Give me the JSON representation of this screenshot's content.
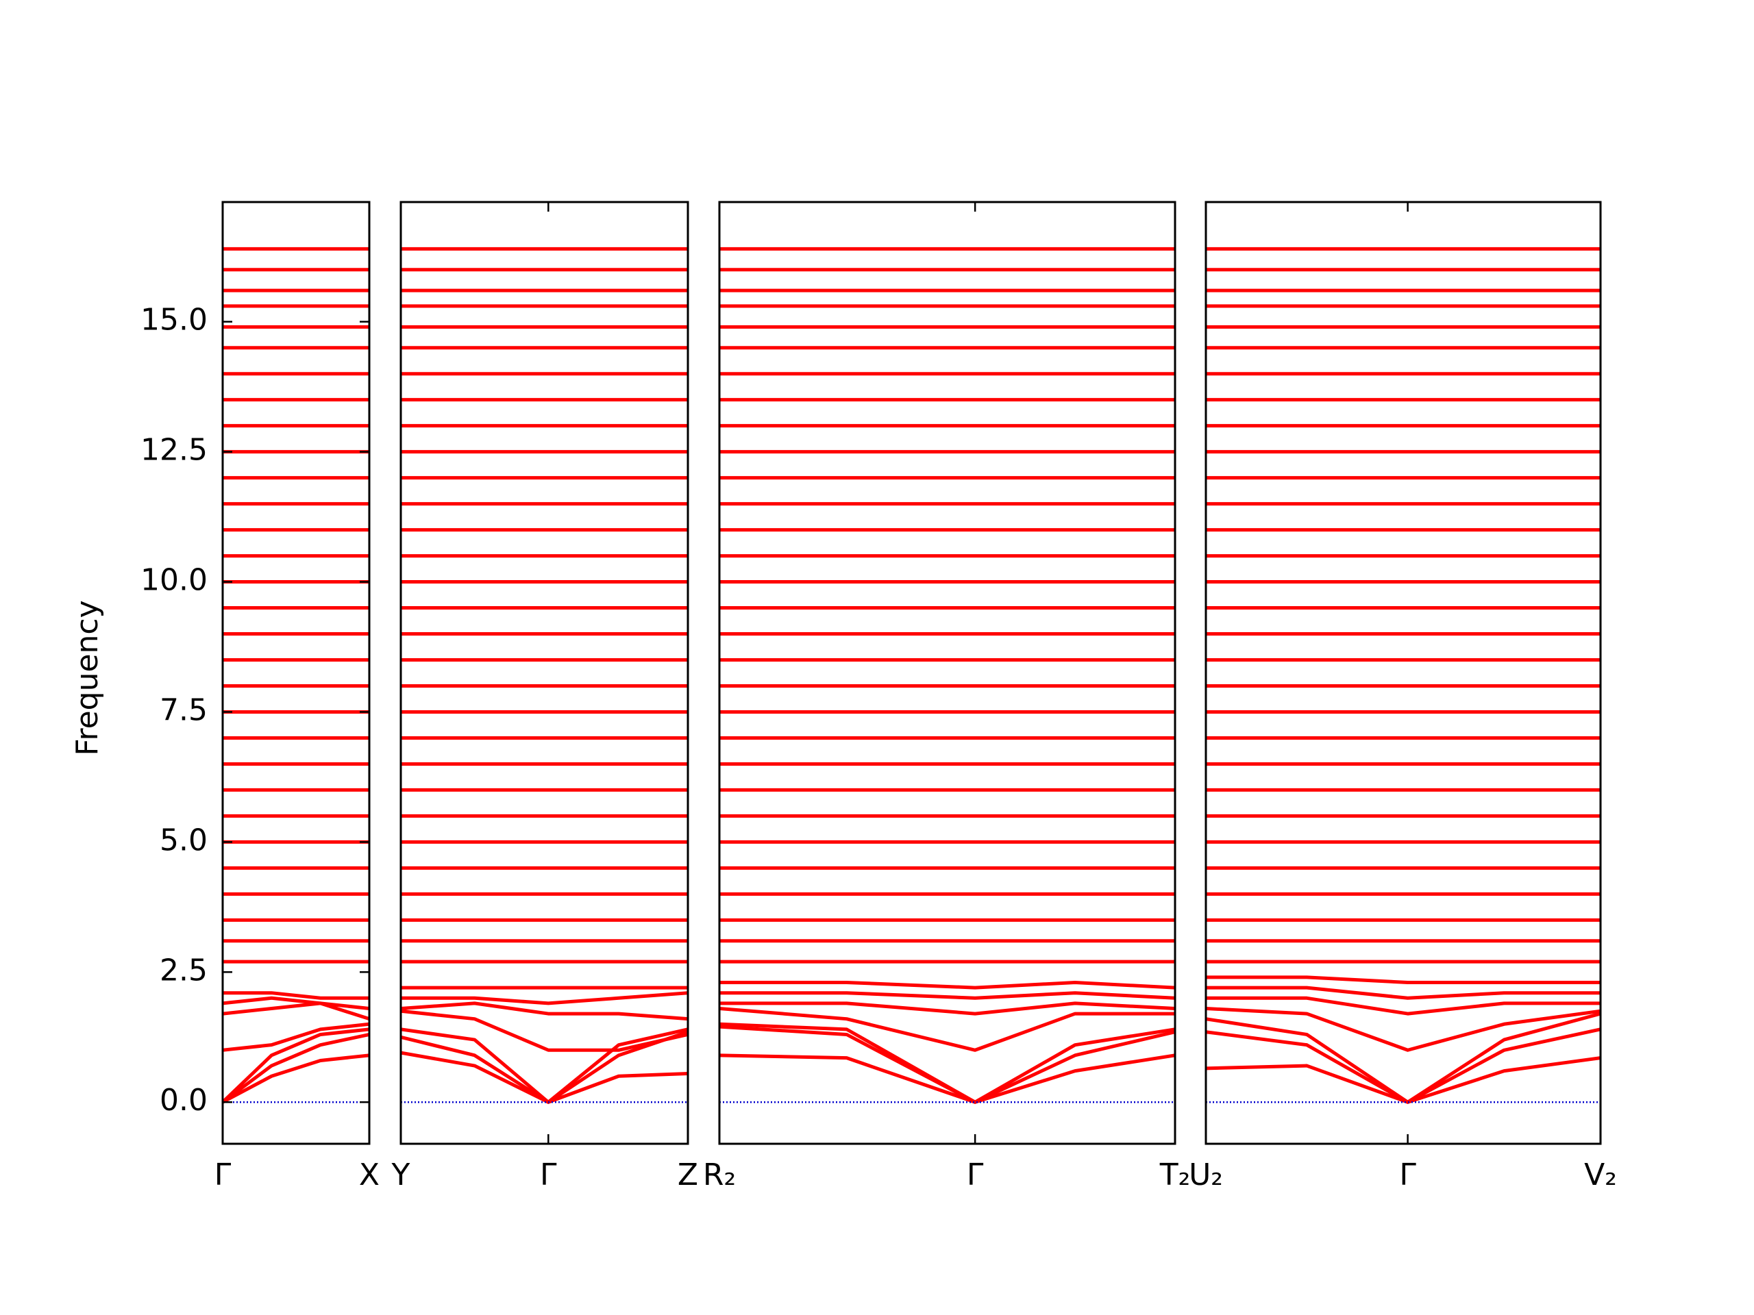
{
  "chart_data": [
    {
      "type": "line",
      "ylabel": "Frequency",
      "color": "#ff0000",
      "hline": 0,
      "hline_color": "#0000cc",
      "xlim": [
        0,
        1.29
      ],
      "ylim": [
        -0.8,
        17.3
      ],
      "xticks": [
        {
          "value": 0,
          "label": "Γ"
        },
        {
          "value": 1.29,
          "label": "X"
        }
      ],
      "yticks": [
        {
          "value": 0,
          "label": "0.0"
        },
        {
          "value": 2.5,
          "label": "2.5"
        },
        {
          "value": 5,
          "label": "5.0"
        },
        {
          "value": 7.5,
          "label": "7.5"
        },
        {
          "value": 10,
          "label": "10.0"
        },
        {
          "value": 12.5,
          "label": "12.5"
        },
        {
          "value": 15,
          "label": "15.0"
        }
      ],
      "x": [
        0,
        0.43,
        0.86,
        1.29
      ],
      "bands": [
        [
          0,
          0.5,
          0.8,
          0.9
        ],
        [
          0,
          0.7,
          1.1,
          1.3
        ],
        [
          0,
          0.9,
          1.3,
          1.4
        ],
        [
          1.0,
          1.1,
          1.4,
          1.5
        ],
        [
          1.7,
          1.8,
          1.9,
          1.6
        ],
        [
          1.9,
          2.0,
          1.9,
          1.8
        ],
        [
          2.1,
          2.1,
          2.0,
          2.0
        ],
        [
          2.7,
          2.7,
          2.7,
          2.7
        ],
        [
          3.1,
          3.1,
          3.1,
          3.1
        ],
        [
          3.5,
          3.5,
          3.5,
          3.5
        ],
        [
          4.0,
          4.0,
          4.0,
          4.0
        ],
        [
          4.5,
          4.5,
          4.5,
          4.5
        ],
        [
          5.0,
          5.0,
          5.0,
          5.0
        ],
        [
          5.5,
          5.5,
          5.5,
          5.5
        ],
        [
          6.0,
          6.0,
          6.0,
          6.0
        ],
        [
          6.5,
          6.5,
          6.5,
          6.5
        ],
        [
          7.0,
          7.0,
          7.0,
          7.0
        ],
        [
          7.5,
          7.5,
          7.5,
          7.5
        ],
        [
          8.0,
          8.0,
          8.0,
          8.0
        ],
        [
          8.5,
          8.5,
          8.5,
          8.5
        ],
        [
          9.0,
          9.0,
          9.0,
          9.0
        ],
        [
          9.5,
          9.5,
          9.5,
          9.5
        ],
        [
          10.0,
          10.0,
          10.0,
          10.0
        ],
        [
          10.5,
          10.5,
          10.5,
          10.5
        ],
        [
          11.0,
          11.0,
          11.0,
          11.0
        ],
        [
          11.5,
          11.5,
          11.5,
          11.5
        ],
        [
          12.0,
          12.0,
          12.0,
          12.0
        ],
        [
          12.5,
          12.5,
          12.5,
          12.5
        ],
        [
          13.0,
          13.0,
          13.0,
          13.0
        ],
        [
          13.5,
          13.5,
          13.5,
          13.5
        ],
        [
          14.0,
          14.0,
          14.0,
          14.0
        ],
        [
          14.5,
          14.5,
          14.5,
          14.5
        ],
        [
          14.9,
          14.9,
          14.9,
          14.9
        ],
        [
          15.3,
          15.3,
          15.3,
          15.3
        ],
        [
          15.6,
          15.6,
          15.6,
          15.6
        ],
        [
          16.0,
          16.0,
          16.0,
          16.0
        ],
        [
          16.4,
          16.4,
          16.4,
          16.4
        ]
      ]
    },
    {
      "type": "line",
      "color": "#ff0000",
      "hline": 0,
      "hline_color": "#0000cc",
      "xlim": [
        0,
        2.53
      ],
      "ylim": [
        -0.8,
        17.3
      ],
      "xticks": [
        {
          "value": 0,
          "label": "Y"
        },
        {
          "value": 1.3,
          "label": "Γ"
        },
        {
          "value": 2.53,
          "label": "Z"
        }
      ],
      "x": [
        0,
        0.65,
        1.3,
        1.92,
        2.53
      ],
      "bands": [
        [
          0.95,
          0.7,
          0,
          0.5,
          0.55
        ],
        [
          1.25,
          0.9,
          0,
          0.9,
          1.35
        ],
        [
          1.4,
          1.2,
          0,
          1.1,
          1.4
        ],
        [
          1.75,
          1.6,
          1.0,
          1.0,
          1.3
        ],
        [
          1.8,
          1.9,
          1.7,
          1.7,
          1.6
        ],
        [
          2.0,
          2.0,
          1.9,
          2.0,
          2.1
        ],
        [
          2.2,
          2.2,
          2.2,
          2.2,
          2.2
        ],
        [
          2.7,
          2.7,
          2.7,
          2.7,
          2.7
        ],
        [
          3.1,
          3.1,
          3.1,
          3.1,
          3.1
        ],
        [
          3.5,
          3.5,
          3.5,
          3.5,
          3.5
        ],
        [
          4.0,
          4.0,
          4.0,
          4.0,
          4.0
        ],
        [
          4.5,
          4.5,
          4.5,
          4.5,
          4.5
        ],
        [
          5.0,
          5.0,
          5.0,
          5.0,
          5.0
        ],
        [
          5.5,
          5.5,
          5.5,
          5.5,
          5.5
        ],
        [
          6.0,
          6.0,
          6.0,
          6.0,
          6.0
        ],
        [
          6.5,
          6.5,
          6.5,
          6.5,
          6.5
        ],
        [
          7.0,
          7.0,
          7.0,
          7.0,
          7.0
        ],
        [
          7.5,
          7.5,
          7.5,
          7.5,
          7.5
        ],
        [
          8.0,
          8.0,
          8.0,
          8.0,
          8.0
        ],
        [
          8.5,
          8.5,
          8.5,
          8.5,
          8.5
        ],
        [
          9.0,
          9.0,
          9.0,
          9.0,
          9.0
        ],
        [
          9.5,
          9.5,
          9.5,
          9.5,
          9.5
        ],
        [
          10.0,
          10.0,
          10.0,
          10.0,
          10.0
        ],
        [
          10.5,
          10.5,
          10.5,
          10.5,
          10.5
        ],
        [
          11.0,
          11.0,
          11.0,
          11.0,
          11.0
        ],
        [
          11.5,
          11.5,
          11.5,
          11.5,
          11.5
        ],
        [
          12.0,
          12.0,
          12.0,
          12.0,
          12.0
        ],
        [
          12.5,
          12.5,
          12.5,
          12.5,
          12.5
        ],
        [
          13.0,
          13.0,
          13.0,
          13.0,
          13.0
        ],
        [
          13.5,
          13.5,
          13.5,
          13.5,
          13.5
        ],
        [
          14.0,
          14.0,
          14.0,
          14.0,
          14.0
        ],
        [
          14.5,
          14.5,
          14.5,
          14.5,
          14.5
        ],
        [
          14.9,
          14.9,
          14.9,
          14.9,
          14.9
        ],
        [
          15.3,
          15.3,
          15.3,
          15.3,
          15.3
        ],
        [
          15.6,
          15.6,
          15.6,
          15.6,
          15.6
        ],
        [
          16.0,
          16.0,
          16.0,
          16.0,
          16.0
        ],
        [
          16.4,
          16.4,
          16.4,
          16.4,
          16.4
        ]
      ]
    },
    {
      "type": "line",
      "color": "#ff0000",
      "hline": 0,
      "hline_color": "#0000cc",
      "xlim": [
        0,
        4.01
      ],
      "ylim": [
        -0.8,
        17.3
      ],
      "xticks": [
        {
          "value": 0,
          "label": "R₂"
        },
        {
          "value": 2.25,
          "label": "Γ"
        },
        {
          "value": 4.01,
          "label": "T₂"
        }
      ],
      "x": [
        0,
        1.12,
        2.25,
        3.13,
        4.01
      ],
      "bands": [
        [
          0.9,
          0.85,
          0,
          0.6,
          0.9
        ],
        [
          1.45,
          1.3,
          0,
          0.9,
          1.35
        ],
        [
          1.5,
          1.4,
          0,
          1.1,
          1.4
        ],
        [
          1.8,
          1.6,
          1.0,
          1.7,
          1.7
        ],
        [
          1.9,
          1.9,
          1.7,
          1.9,
          1.8
        ],
        [
          2.1,
          2.1,
          2.0,
          2.1,
          2.0
        ],
        [
          2.3,
          2.3,
          2.2,
          2.3,
          2.2
        ],
        [
          2.7,
          2.7,
          2.7,
          2.7,
          2.7
        ],
        [
          3.1,
          3.1,
          3.1,
          3.1,
          3.1
        ],
        [
          3.5,
          3.5,
          3.5,
          3.5,
          3.5
        ],
        [
          4.0,
          4.0,
          4.0,
          4.0,
          4.0
        ],
        [
          4.5,
          4.5,
          4.5,
          4.5,
          4.5
        ],
        [
          5.0,
          5.0,
          5.0,
          5.0,
          5.0
        ],
        [
          5.5,
          5.5,
          5.5,
          5.5,
          5.5
        ],
        [
          6.0,
          6.0,
          6.0,
          6.0,
          6.0
        ],
        [
          6.5,
          6.5,
          6.5,
          6.5,
          6.5
        ],
        [
          7.0,
          7.0,
          7.0,
          7.0,
          7.0
        ],
        [
          7.5,
          7.5,
          7.5,
          7.5,
          7.5
        ],
        [
          8.0,
          8.0,
          8.0,
          8.0,
          8.0
        ],
        [
          8.5,
          8.5,
          8.5,
          8.5,
          8.5
        ],
        [
          9.0,
          9.0,
          9.0,
          9.0,
          9.0
        ],
        [
          9.5,
          9.5,
          9.5,
          9.5,
          9.5
        ],
        [
          10.0,
          10.0,
          10.0,
          10.0,
          10.0
        ],
        [
          10.5,
          10.5,
          10.5,
          10.5,
          10.5
        ],
        [
          11.0,
          11.0,
          11.0,
          11.0,
          11.0
        ],
        [
          11.5,
          11.5,
          11.5,
          11.5,
          11.5
        ],
        [
          12.0,
          12.0,
          12.0,
          12.0,
          12.0
        ],
        [
          12.5,
          12.5,
          12.5,
          12.5,
          12.5
        ],
        [
          13.0,
          13.0,
          13.0,
          13.0,
          13.0
        ],
        [
          13.5,
          13.5,
          13.5,
          13.5,
          13.5
        ],
        [
          14.0,
          14.0,
          14.0,
          14.0,
          14.0
        ],
        [
          14.5,
          14.5,
          14.5,
          14.5,
          14.5
        ],
        [
          14.9,
          14.9,
          14.9,
          14.9,
          14.9
        ],
        [
          15.3,
          15.3,
          15.3,
          15.3,
          15.3
        ],
        [
          15.6,
          15.6,
          15.6,
          15.6,
          15.6
        ],
        [
          16.0,
          16.0,
          16.0,
          16.0,
          16.0
        ],
        [
          16.4,
          16.4,
          16.4,
          16.4,
          16.4
        ]
      ]
    },
    {
      "type": "line",
      "color": "#ff0000",
      "hline": 0,
      "hline_color": "#0000cc",
      "xlim": [
        0,
        3.48
      ],
      "ylim": [
        -0.8,
        17.3
      ],
      "xticks": [
        {
          "value": 0,
          "label": "U₂"
        },
        {
          "value": 1.78,
          "label": "Γ"
        },
        {
          "value": 3.48,
          "label": "V₂"
        }
      ],
      "x": [
        0,
        0.89,
        1.78,
        2.63,
        3.48
      ],
      "bands": [
        [
          0.65,
          0.7,
          0,
          0.6,
          0.85
        ],
        [
          1.35,
          1.1,
          0,
          1.0,
          1.4
        ],
        [
          1.6,
          1.3,
          0,
          1.2,
          1.7
        ],
        [
          1.8,
          1.7,
          1.0,
          1.5,
          1.75
        ],
        [
          2.0,
          2.0,
          1.7,
          1.9,
          1.9
        ],
        [
          2.2,
          2.2,
          2.0,
          2.1,
          2.1
        ],
        [
          2.4,
          2.4,
          2.3,
          2.3,
          2.3
        ],
        [
          2.7,
          2.7,
          2.7,
          2.7,
          2.7
        ],
        [
          3.1,
          3.1,
          3.1,
          3.1,
          3.1
        ],
        [
          3.5,
          3.5,
          3.5,
          3.5,
          3.5
        ],
        [
          4.0,
          4.0,
          4.0,
          4.0,
          4.0
        ],
        [
          4.5,
          4.5,
          4.5,
          4.5,
          4.5
        ],
        [
          5.0,
          5.0,
          5.0,
          5.0,
          5.0
        ],
        [
          5.5,
          5.5,
          5.5,
          5.5,
          5.5
        ],
        [
          6.0,
          6.0,
          6.0,
          6.0,
          6.0
        ],
        [
          6.5,
          6.5,
          6.5,
          6.5,
          6.5
        ],
        [
          7.0,
          7.0,
          7.0,
          7.0,
          7.0
        ],
        [
          7.5,
          7.5,
          7.5,
          7.5,
          7.5
        ],
        [
          8.0,
          8.0,
          8.0,
          8.0,
          8.0
        ],
        [
          8.5,
          8.5,
          8.5,
          8.5,
          8.5
        ],
        [
          9.0,
          9.0,
          9.0,
          9.0,
          9.0
        ],
        [
          9.5,
          9.5,
          9.5,
          9.5,
          9.5
        ],
        [
          10.0,
          10.0,
          10.0,
          10.0,
          10.0
        ],
        [
          10.5,
          10.5,
          10.5,
          10.5,
          10.5
        ],
        [
          11.0,
          11.0,
          11.0,
          11.0,
          11.0
        ],
        [
          11.5,
          11.5,
          11.5,
          11.5,
          11.5
        ],
        [
          12.0,
          12.0,
          12.0,
          12.0,
          12.0
        ],
        [
          12.5,
          12.5,
          12.5,
          12.5,
          12.5
        ],
        [
          13.0,
          13.0,
          13.0,
          13.0,
          13.0
        ],
        [
          13.5,
          13.5,
          13.5,
          13.5,
          13.5
        ],
        [
          14.0,
          14.0,
          14.0,
          14.0,
          14.0
        ],
        [
          14.5,
          14.5,
          14.5,
          14.5,
          14.5
        ],
        [
          14.9,
          14.9,
          14.9,
          14.9,
          14.9
        ],
        [
          15.3,
          15.3,
          15.3,
          15.3,
          15.3
        ],
        [
          15.6,
          15.6,
          15.6,
          15.6,
          15.6
        ],
        [
          16.0,
          16.0,
          16.0,
          16.0,
          16.0
        ],
        [
          16.4,
          16.4,
          16.4,
          16.4,
          16.4
        ]
      ]
    }
  ]
}
